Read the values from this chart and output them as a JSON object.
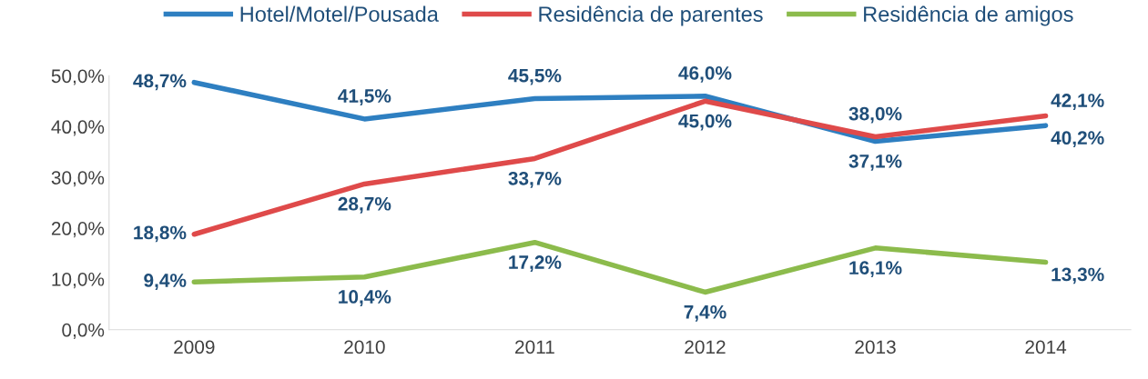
{
  "chart_data": {
    "type": "line",
    "categories": [
      "2009",
      "2010",
      "2011",
      "2012",
      "2013",
      "2014"
    ],
    "series": [
      {
        "name": "Hotel/Motel/Pousada",
        "color": "#2e7fc1",
        "values": [
          48.7,
          41.5,
          45.5,
          46.0,
          37.1,
          40.2
        ],
        "value_labels": [
          "48,7%",
          "41,5%",
          "45,5%",
          "46,0%",
          "37,1%",
          "40,2%"
        ]
      },
      {
        "name": "Residência de parentes",
        "color": "#df4a4a",
        "values": [
          18.8,
          28.7,
          33.7,
          45.0,
          38.0,
          42.1
        ],
        "value_labels": [
          "18,8%",
          "28,7%",
          "33,7%",
          "45,0%",
          "38,0%",
          "42,1%"
        ]
      },
      {
        "name": "Residência de amigos",
        "color": "#8cbb4c",
        "values": [
          9.4,
          10.4,
          17.2,
          7.4,
          16.1,
          13.3
        ],
        "value_labels": [
          "9,4%",
          "10,4%",
          "17,2%",
          "7,4%",
          "16,1%",
          "13,3%"
        ]
      }
    ],
    "ylim": [
      0,
      50
    ],
    "yticks": [
      {
        "value": 0,
        "label": "0,0%"
      },
      {
        "value": 10,
        "label": "10,0%"
      },
      {
        "value": 20,
        "label": "20,0%"
      },
      {
        "value": 30,
        "label": "30,0%"
      },
      {
        "value": 40,
        "label": "40,0%"
      },
      {
        "value": 50,
        "label": "50,0%"
      }
    ],
    "grid": false,
    "legend": "top",
    "marker": "none",
    "line_style": "solid"
  }
}
